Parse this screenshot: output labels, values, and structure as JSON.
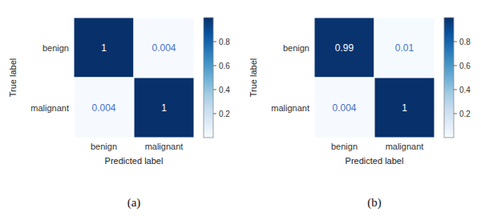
{
  "chart_data": [
    {
      "type": "heatmap",
      "title": "(a)",
      "x_categories": [
        "benign",
        "malignant"
      ],
      "y_categories": [
        "benign",
        "malignant"
      ],
      "x_label": "Predicted label",
      "y_label": "True label",
      "values": [
        [
          1,
          0.004
        ],
        [
          0.004,
          1
        ]
      ],
      "colorbar_range": [
        0,
        1
      ],
      "colorbar_ticks": [
        0.2,
        0.4,
        0.6,
        0.8
      ],
      "data_labels": true
    },
    {
      "type": "heatmap",
      "title": "(b)",
      "x_categories": [
        "benign",
        "malignant"
      ],
      "y_categories": [
        "benign",
        "malignant"
      ],
      "x_label": "Predicted label",
      "y_label": "True label",
      "values": [
        [
          0.99,
          0.01
        ],
        [
          0.004,
          1
        ]
      ],
      "colorbar_range": [
        0,
        1
      ],
      "colorbar_ticks": [
        0.2,
        0.4,
        0.6,
        0.8
      ],
      "data_labels": true
    }
  ]
}
